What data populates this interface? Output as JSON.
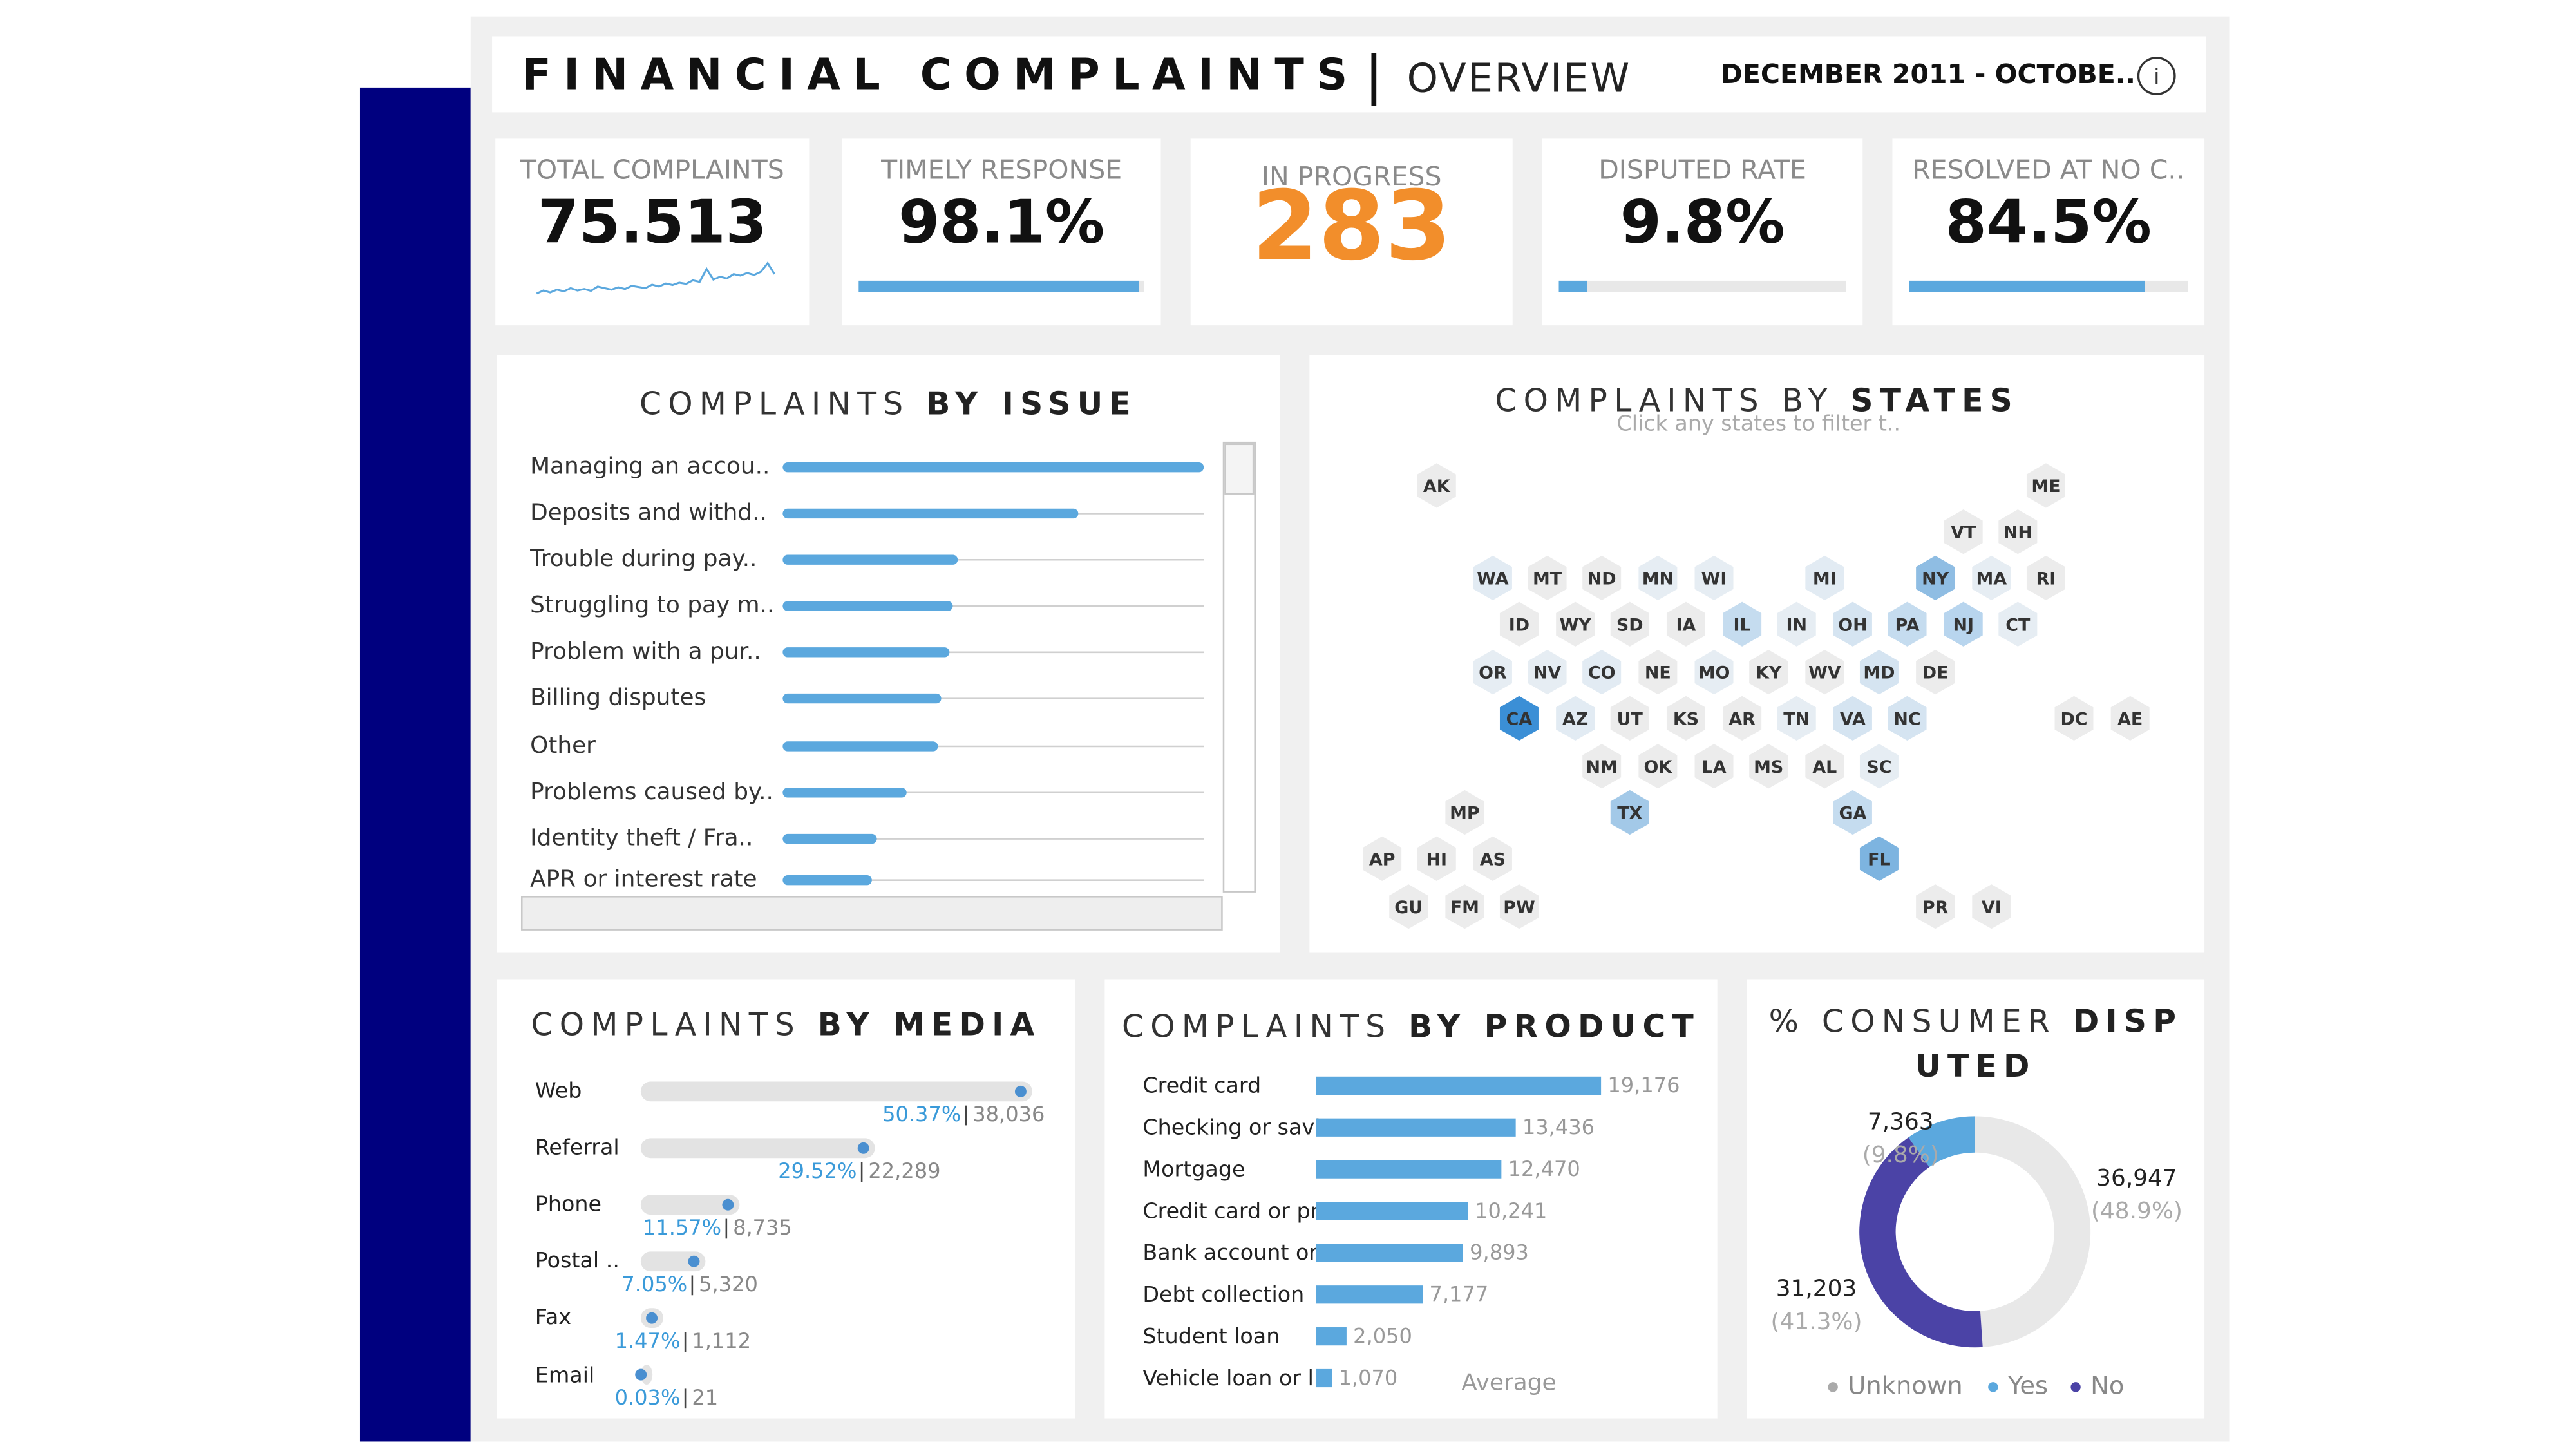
{
  "header": {
    "title": "FINANCIAL COMPLAINTS",
    "subtitle": "OVERVIEW",
    "date_range": "DECEMBER 2011 - OCTOBE..",
    "info_icon": "i"
  },
  "kpis": [
    {
      "label": "TOTAL COMPLAINTS",
      "value": "75.513",
      "sparkline": [
        620,
        700,
        650,
        720,
        680,
        760,
        700,
        740,
        690,
        800,
        760,
        720,
        780,
        740,
        820,
        790,
        760,
        850,
        800,
        880,
        840,
        900,
        870,
        960,
        920,
        1250,
        980,
        1050,
        1010,
        1120,
        1080,
        1150,
        1100,
        1180,
        1400,
        1120
      ],
      "sparkline_ylim": [
        400,
        1500
      ]
    },
    {
      "label": "TIMELY RESPONSE",
      "value": "98.1%",
      "percent": 98.1,
      "xlim": [
        0,
        100
      ]
    },
    {
      "label": "IN PROGRESS",
      "value": "283"
    },
    {
      "label": "DISPUTED RATE",
      "value": "9.8%",
      "percent": 9.8,
      "xlim": [
        0,
        100
      ]
    },
    {
      "label": "RESOLVED AT NO C..",
      "value": "84.5%",
      "percent": 84.5,
      "xlim": [
        0,
        100
      ]
    }
  ],
  "chart_data": [
    {
      "type": "bar",
      "title": "COMPLAINTS",
      "title_bold": "BY ISSUE",
      "orientation": "horizontal",
      "categories": [
        "Managing an accou..",
        "Deposits and withd..",
        "Trouble during pay..",
        "Struggling to pay m..",
        "Problem with a pur..",
        "Billing disputes",
        "Other",
        "Problems caused by..",
        "Identity theft / Fra..",
        "APR or interest rate"
      ],
      "values": [
        255,
        179,
        106,
        103,
        101,
        96,
        94,
        75,
        57,
        54
      ],
      "xlim": [
        0,
        255
      ],
      "color": "#5ba8de"
    },
    {
      "type": "dot",
      "title": "COMPLAINTS",
      "title_bold": "BY MEDIA",
      "categories": [
        "Web",
        "Referral",
        "Phone",
        "Postal ..",
        "Fax",
        "Email"
      ],
      "values": [
        50.37,
        29.52,
        11.57,
        7.05,
        1.47,
        0.03
      ],
      "value_labels": [
        "50.37%",
        "29.52%",
        "11.57%",
        "7.05%",
        "1.47%",
        "0.03%"
      ],
      "counts": [
        38036,
        22289,
        8735,
        5320,
        1112,
        21
      ],
      "count_labels": [
        "38,036",
        "22,289",
        "8,735",
        "5,320",
        "1,112",
        "21"
      ],
      "xlim": [
        0,
        51
      ],
      "color": "#4a8fd0"
    },
    {
      "type": "bar",
      "title": "COMPLAINTS",
      "title_bold": "BY PRODUCT",
      "orientation": "horizontal",
      "categories": [
        "Credit card",
        "Checking or savi..",
        "Mortgage",
        "Credit card or pr..",
        "Bank account or ..",
        "Debt collection",
        "Student loan",
        "Vehicle loan or l.."
      ],
      "values": [
        19176,
        13436,
        12470,
        10241,
        9893,
        7177,
        2050,
        1070
      ],
      "value_labels": [
        "19,176",
        "13,436",
        "12,470",
        "10,241",
        "9,893",
        "7,177",
        "2,050",
        "1,070"
      ],
      "xlim": [
        0,
        20000
      ],
      "color": "#5ba8de",
      "annotation": "Average"
    },
    {
      "type": "donut",
      "title": "% CONSUMER",
      "title_bold": "DISPUTED",
      "categories": [
        "Unknown",
        "Yes",
        "No"
      ],
      "values": [
        36947,
        7363,
        31203
      ],
      "value_labels": [
        "36,947",
        "7,363",
        "31,203"
      ],
      "percents": [
        48.9,
        9.8,
        41.3
      ],
      "percent_labels": [
        "(48.9%)",
        "(9.8%)",
        "(41.3%)"
      ],
      "colors": [
        "#e8e8e8",
        "#5ba8de",
        "#4b43a6"
      ]
    }
  ],
  "states_map": {
    "title": "COMPLAINTS BY",
    "title_bold": "STATES",
    "hint": "Click any states to filter t..",
    "states": [
      {
        "code": "AK",
        "color": "#ececec"
      },
      {
        "code": "ME",
        "color": "#ececec"
      },
      {
        "code": "VT",
        "color": "#ececec"
      },
      {
        "code": "NH",
        "color": "#ececec"
      },
      {
        "code": "WA",
        "color": "#e2ebf3"
      },
      {
        "code": "MT",
        "color": "#ececec"
      },
      {
        "code": "ND",
        "color": "#ececec"
      },
      {
        "code": "MN",
        "color": "#e6edf3"
      },
      {
        "code": "WI",
        "color": "#e6edf3"
      },
      {
        "code": "MI",
        "color": "#e2ebf3"
      },
      {
        "code": "NY",
        "color": "#8fbde3"
      },
      {
        "code": "MA",
        "color": "#e6edf3"
      },
      {
        "code": "RI",
        "color": "#ececec"
      },
      {
        "code": "ID",
        "color": "#ececec"
      },
      {
        "code": "WY",
        "color": "#ececec"
      },
      {
        "code": "SD",
        "color": "#ececec"
      },
      {
        "code": "IA",
        "color": "#ececec"
      },
      {
        "code": "IL",
        "color": "#c5dcef"
      },
      {
        "code": "IN",
        "color": "#e6edf3"
      },
      {
        "code": "OH",
        "color": "#d5e4f1"
      },
      {
        "code": "PA",
        "color": "#c5dcef"
      },
      {
        "code": "NJ",
        "color": "#b8d5ee"
      },
      {
        "code": "CT",
        "color": "#e6edf3"
      },
      {
        "code": "OR",
        "color": "#e6edf3"
      },
      {
        "code": "NV",
        "color": "#e6edf3"
      },
      {
        "code": "CO",
        "color": "#e2ebf3"
      },
      {
        "code": "NE",
        "color": "#ececec"
      },
      {
        "code": "MO",
        "color": "#e6edf3"
      },
      {
        "code": "KY",
        "color": "#ececec"
      },
      {
        "code": "WV",
        "color": "#ececec"
      },
      {
        "code": "MD",
        "color": "#d5e4f1"
      },
      {
        "code": "DE",
        "color": "#ececec"
      },
      {
        "code": "CA",
        "color": "#3b8fd6"
      },
      {
        "code": "AZ",
        "color": "#e2ebf3"
      },
      {
        "code": "UT",
        "color": "#ececec"
      },
      {
        "code": "KS",
        "color": "#ececec"
      },
      {
        "code": "AR",
        "color": "#ececec"
      },
      {
        "code": "TN",
        "color": "#e6edf3"
      },
      {
        "code": "VA",
        "color": "#d5e4f1"
      },
      {
        "code": "NC",
        "color": "#d5e4f1"
      },
      {
        "code": "DC",
        "color": "#ececec"
      },
      {
        "code": "AE",
        "color": "#ececec"
      },
      {
        "code": "NM",
        "color": "#ececec"
      },
      {
        "code": "OK",
        "color": "#ececec"
      },
      {
        "code": "LA",
        "color": "#ececec"
      },
      {
        "code": "MS",
        "color": "#ececec"
      },
      {
        "code": "AL",
        "color": "#ececec"
      },
      {
        "code": "SC",
        "color": "#e6edf3"
      },
      {
        "code": "MP",
        "color": "#ececec"
      },
      {
        "code": "TX",
        "color": "#a3c9e8"
      },
      {
        "code": "GA",
        "color": "#c5dcef"
      },
      {
        "code": "AP",
        "color": "#ececec"
      },
      {
        "code": "HI",
        "color": "#ececec"
      },
      {
        "code": "AS",
        "color": "#ececec"
      },
      {
        "code": "FL",
        "color": "#7db4e0"
      },
      {
        "code": "GU",
        "color": "#ececec"
      },
      {
        "code": "FM",
        "color": "#ececec"
      },
      {
        "code": "PW",
        "color": "#ececec"
      },
      {
        "code": "PR",
        "color": "#ececec"
      },
      {
        "code": "VI",
        "color": "#ececec"
      }
    ]
  }
}
